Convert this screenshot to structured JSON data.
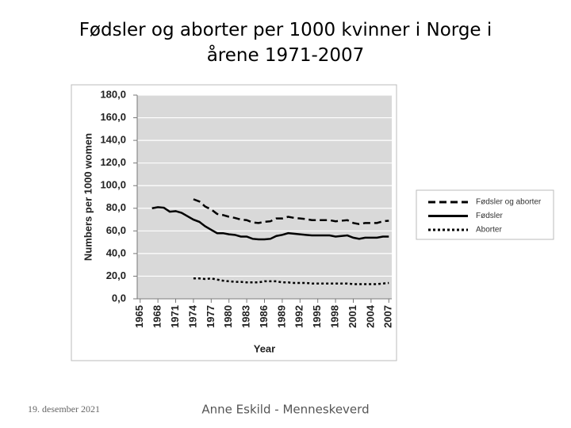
{
  "chart_data": {
    "type": "line",
    "title": "Fødsler og aborter per 1000 kvinner i Norge i årene 1971-2007",
    "x_label": "Year",
    "y_label": "Numbers per 1000 women",
    "x": [
      1965,
      1966,
      1967,
      1968,
      1969,
      1970,
      1971,
      1972,
      1973,
      1974,
      1975,
      1976,
      1977,
      1978,
      1979,
      1980,
      1981,
      1982,
      1983,
      1984,
      1985,
      1986,
      1987,
      1988,
      1989,
      1990,
      1991,
      1992,
      1993,
      1994,
      1995,
      1996,
      1997,
      1998,
      1999,
      2000,
      2001,
      2002,
      2003,
      2004,
      2005,
      2006,
      2007
    ],
    "xlim": [
      1964.5,
      2007.5
    ],
    "xticks": [
      1965,
      1968,
      1971,
      1974,
      1977,
      1980,
      1983,
      1986,
      1989,
      1992,
      1995,
      1998,
      2001,
      2004,
      2007
    ],
    "ylim": [
      0,
      180
    ],
    "yticks": [
      {
        "value": 0,
        "label": "0,0"
      },
      {
        "value": 20,
        "label": "20,0"
      },
      {
        "value": 40,
        "label": "40,0"
      },
      {
        "value": 60,
        "label": "60,0"
      },
      {
        "value": 80,
        "label": "80,0"
      },
      {
        "value": 100,
        "label": "100,0"
      },
      {
        "value": 120,
        "label": "120,0"
      },
      {
        "value": 140,
        "label": "140,0"
      },
      {
        "value": 160,
        "label": "160,0"
      },
      {
        "value": 180,
        "label": "180,0"
      }
    ],
    "grid": true,
    "legend": "right",
    "series": [
      {
        "name": "Fødsler og aborter",
        "color": "#000000",
        "dash": "dashed",
        "values": [
          null,
          null,
          null,
          null,
          null,
          null,
          null,
          null,
          null,
          88,
          86,
          81.5,
          79,
          75,
          74,
          72.5,
          71.5,
          70,
          69.5,
          67.5,
          67,
          68,
          68.5,
          71,
          71,
          72.5,
          71.5,
          71,
          70.5,
          69.5,
          69.5,
          69.5,
          69.5,
          68.5,
          69,
          69.5,
          67,
          66,
          67,
          67,
          67,
          68.5,
          69
        ]
      },
      {
        "name": "Fødsler",
        "color": "#000000",
        "dash": "solid",
        "values": [
          null,
          null,
          80,
          81,
          80.5,
          77,
          77.5,
          76,
          73,
          70,
          68,
          64,
          61,
          58,
          58,
          57,
          56.5,
          55,
          55,
          53,
          52.5,
          52.5,
          53,
          55.5,
          56.5,
          58,
          57.5,
          57,
          56.5,
          56,
          56,
          56,
          56,
          55,
          55.5,
          56,
          54,
          53,
          54,
          54,
          54,
          55,
          55
        ]
      },
      {
        "name": "Aborter",
        "color": "#000000",
        "dash": "dotted",
        "values": [
          null,
          null,
          null,
          null,
          null,
          null,
          null,
          null,
          null,
          18,
          18,
          17.5,
          18,
          17,
          16,
          15.5,
          15,
          15,
          14.5,
          14.5,
          14.5,
          15.5,
          15.5,
          15.5,
          14.5,
          14.5,
          14,
          14,
          14,
          13.5,
          13.5,
          13.5,
          13.5,
          13.5,
          13.5,
          13.5,
          13,
          13,
          13,
          13,
          13,
          13.5,
          14
        ]
      }
    ]
  },
  "footer": {
    "date": "19. desember 2021",
    "author": "Anne Eskild - Menneskeverd"
  }
}
